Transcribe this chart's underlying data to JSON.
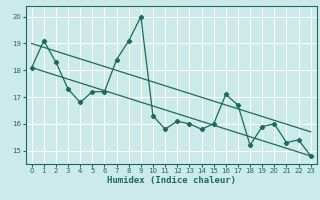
{
  "xlabel": "Humidex (Indice chaleur)",
  "background_color": "#cceaea",
  "grid_color": "#ffffff",
  "line_color": "#1a6b5a",
  "xlim": [
    -0.5,
    23.5
  ],
  "ylim": [
    14.5,
    20.4
  ],
  "yticks": [
    15,
    16,
    17,
    18,
    19,
    20
  ],
  "xticks": [
    0,
    1,
    2,
    3,
    4,
    5,
    6,
    7,
    8,
    9,
    10,
    11,
    12,
    13,
    14,
    15,
    16,
    17,
    18,
    19,
    20,
    21,
    22,
    23
  ],
  "series1_x": [
    0,
    1,
    2,
    3,
    4,
    5,
    6,
    7,
    8,
    9,
    10,
    11,
    12,
    13,
    14,
    15,
    16,
    17,
    18,
    19,
    20,
    21,
    22,
    23
  ],
  "series1_y": [
    18.1,
    19.1,
    18.3,
    17.3,
    16.8,
    17.2,
    17.2,
    18.4,
    19.1,
    20.0,
    16.3,
    15.8,
    16.1,
    16.0,
    15.8,
    16.0,
    17.1,
    16.7,
    15.2,
    15.9,
    16.0,
    15.3,
    15.4,
    14.8
  ],
  "trend1_x": [
    0,
    23
  ],
  "trend1_y": [
    18.1,
    14.8
  ],
  "trend2_x": [
    0,
    23
  ],
  "trend2_y": [
    19.0,
    15.7
  ]
}
